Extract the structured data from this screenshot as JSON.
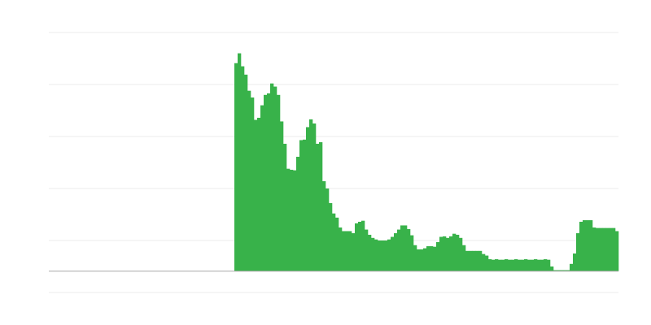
{
  "chart_data": {
    "type": "bar",
    "title": "",
    "xlabel": "",
    "ylabel": "",
    "ylim": [
      -0.41,
      4.59
    ],
    "gridlines": [
      4.59,
      3.59,
      2.59,
      1.59,
      0.59,
      -0.41
    ],
    "grid": true,
    "bar_color": "#38b24a",
    "grid_color": "#ebebeb",
    "axis_color": "#a8a8a8",
    "values": [
      0,
      0,
      0,
      0,
      0,
      0,
      0,
      0,
      0,
      0,
      0,
      0,
      0,
      0,
      0,
      0,
      0,
      0,
      0,
      0,
      0,
      0,
      0,
      0,
      0,
      0,
      0,
      0,
      0,
      0,
      0,
      0,
      0,
      0,
      0,
      0,
      0,
      0,
      0,
      0,
      0,
      0,
      0,
      0,
      0,
      0,
      0,
      0,
      0,
      0,
      0,
      0,
      0,
      0,
      0,
      0,
      0,
      4.0,
      4.19,
      3.94,
      3.78,
      3.47,
      3.34,
      2.91,
      2.95,
      3.19,
      3.39,
      3.42,
      3.61,
      3.55,
      3.39,
      2.88,
      2.45,
      1.97,
      1.95,
      1.94,
      2.2,
      2.52,
      2.53,
      2.77,
      2.92,
      2.84,
      2.45,
      2.48,
      1.73,
      1.59,
      1.31,
      1.11,
      1.03,
      0.84,
      0.77,
      0.77,
      0.77,
      0.73,
      0.92,
      0.95,
      0.97,
      0.8,
      0.7,
      0.64,
      0.61,
      0.59,
      0.59,
      0.59,
      0.61,
      0.66,
      0.73,
      0.8,
      0.88,
      0.88,
      0.81,
      0.69,
      0.5,
      0.42,
      0.42,
      0.44,
      0.48,
      0.48,
      0.47,
      0.56,
      0.66,
      0.67,
      0.64,
      0.67,
      0.72,
      0.7,
      0.64,
      0.5,
      0.39,
      0.39,
      0.39,
      0.39,
      0.39,
      0.33,
      0.3,
      0.23,
      0.22,
      0.23,
      0.22,
      0.22,
      0.23,
      0.22,
      0.22,
      0.23,
      0.22,
      0.22,
      0.23,
      0.22,
      0.22,
      0.23,
      0.22,
      0.22,
      0.23,
      0.22,
      0.09,
      0.02,
      0.02,
      0.02,
      0.02,
      0.02,
      0.14,
      0.34,
      0.73,
      0.95,
      0.98,
      0.98,
      0.98,
      0.84,
      0.83,
      0.83,
      0.83,
      0.83,
      0.83,
      0.83,
      0.77
    ]
  }
}
